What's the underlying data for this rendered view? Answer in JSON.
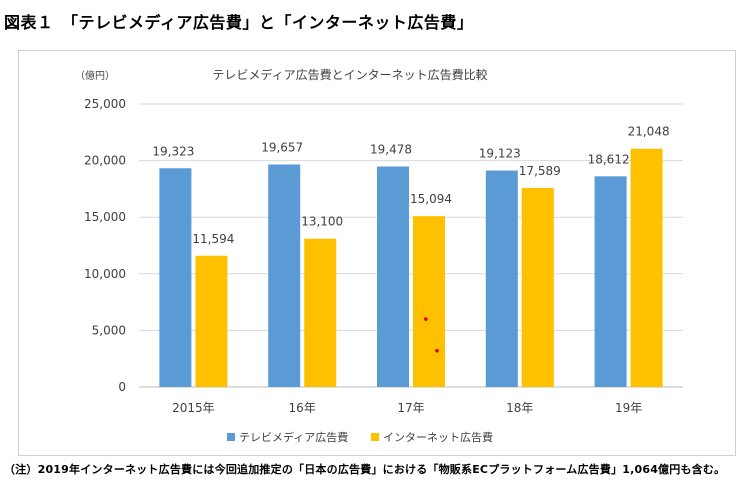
{
  "figure_title": "図表１　「テレビメディア広告費」と「インターネット広告費」",
  "footnote": "（注）2019年インターネット広告費には今回追加推定の「日本の広告費」における「物販系ECプラットフォーム広告費」1,064億円も含む。",
  "colors": {
    "tv": "#5b9bd5",
    "internet": "#ffc000",
    "grid": "#d9d9d9",
    "text": "#404040",
    "dot": "#e00000"
  },
  "chart_data": {
    "type": "bar",
    "title": "テレビメディア広告費とインターネット広告費比較",
    "ylabel": "（億円）",
    "xlabel": "",
    "categories": [
      "2015年",
      "16年",
      "17年",
      "18年",
      "19年"
    ],
    "ylim": [
      0,
      25000
    ],
    "yticks": [
      0,
      5000,
      10000,
      15000,
      20000,
      25000
    ],
    "ytick_labels": [
      "0",
      "5,000",
      "10,000",
      "15,000",
      "20,000",
      "25,000"
    ],
    "grid": true,
    "legend_position": "bottom",
    "series": [
      {
        "name": "テレビメディア広告費",
        "color": "#5b9bd5",
        "values": [
          19323,
          19657,
          19478,
          19123,
          18612
        ],
        "labels": [
          "19,323",
          "19,657",
          "19,478",
          "19,123",
          "18,612"
        ]
      },
      {
        "name": "インターネット広告費",
        "color": "#ffc000",
        "values": [
          11594,
          13100,
          15094,
          17589,
          21048
        ],
        "labels": [
          "11,594",
          "13,100",
          "15,094",
          "17,589",
          "21,048"
        ]
      }
    ],
    "annotations": [
      {
        "category": "17年",
        "series": "インターネット広告費",
        "marks": [
          {
            "value": 6000,
            "offset": -0.1
          },
          {
            "value": 3200,
            "offset": 0.25
          }
        ]
      }
    ]
  }
}
